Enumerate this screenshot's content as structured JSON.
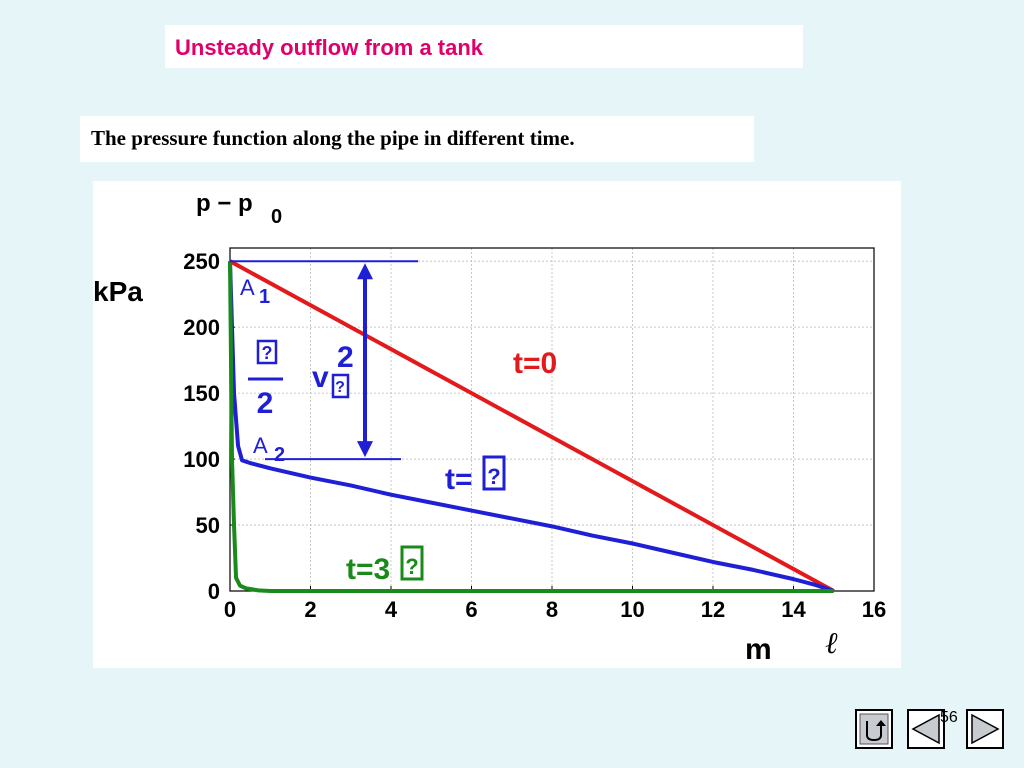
{
  "slide": {
    "title": "Unsteady outflow from a tank",
    "subtitle": "The pressure function along the pipe in different time.",
    "page_number": "56"
  },
  "colors": {
    "title": "#e0006c",
    "t0": "#e31a1c",
    "t_tau": "#1f1fd6",
    "t_3tau": "#1a8a1a",
    "background": "#e6f5f7"
  },
  "chart_data": {
    "type": "line",
    "title": "",
    "ylabel_top": "p − p",
    "ylabel_sub": "0",
    "ylabel_unit": "kPa",
    "xlabel": "m",
    "xlabel_symbol": "ℓ",
    "xlim": [
      0,
      16
    ],
    "ylim": [
      0,
      260
    ],
    "grid": true,
    "xticks": [
      0,
      2,
      4,
      6,
      8,
      10,
      12,
      14,
      16
    ],
    "xtick_labels": [
      "0",
      "2",
      "4",
      "6",
      "8",
      "10",
      "12",
      "14",
      "16"
    ],
    "yticks": [
      0,
      50,
      100,
      150,
      200,
      250
    ],
    "ytick_labels": [
      "0",
      "50",
      "100",
      "150",
      "200",
      "250"
    ],
    "series": [
      {
        "name": "t=0",
        "label": "t=0",
        "color": "#e31a1c",
        "x": [
          0,
          15
        ],
        "y": [
          250,
          0
        ]
      },
      {
        "name": "t=τ",
        "label": "t=",
        "label_glyph": "?",
        "color": "#1f1fd6",
        "x": [
          0,
          0.05,
          0.1,
          0.2,
          0.3,
          0.5,
          1,
          2,
          3,
          4,
          5,
          6,
          7,
          8,
          9,
          10,
          11,
          12,
          13,
          14,
          14.5,
          15
        ],
        "y": [
          250,
          200,
          150,
          110,
          99,
          97,
          93,
          86,
          80,
          73,
          67,
          61,
          55,
          49,
          42,
          36,
          29,
          22,
          16,
          9,
          5,
          0
        ]
      },
      {
        "name": "t=3τ",
        "label": "t=3",
        "label_glyph": "?",
        "color": "#1a8a1a",
        "x": [
          0,
          0.05,
          0.1,
          0.15,
          0.25,
          0.4,
          0.7,
          1,
          15
        ],
        "y": [
          250,
          100,
          50,
          10,
          4,
          2,
          0.5,
          0,
          0
        ]
      }
    ],
    "annotations": {
      "A1": {
        "letter": "A",
        "sub": "1"
      },
      "A2": {
        "letter": "A",
        "sub": "2"
      },
      "fraction_top": "?",
      "fraction_bottom": "2",
      "v_text": "v",
      "v_exp": "2",
      "v_glyph": "?",
      "reference_levels": [
        250,
        100
      ]
    }
  },
  "nav": {
    "back_icon": "return-icon",
    "prev_icon": "triangle-left-icon",
    "next_icon": "triangle-right-icon"
  }
}
